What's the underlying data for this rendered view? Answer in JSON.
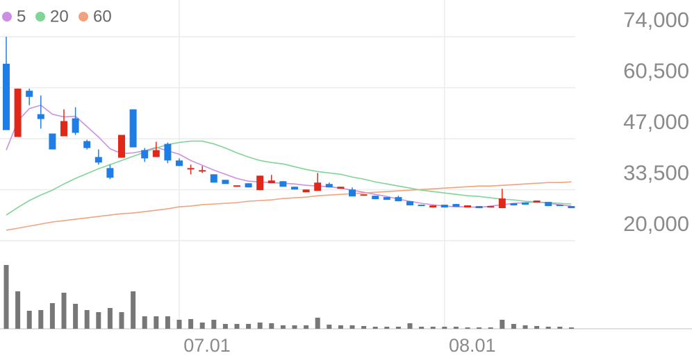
{
  "chart_data": {
    "type": "candlestick",
    "categories": [
      null,
      null,
      null,
      null,
      null,
      null,
      null,
      null,
      null,
      null,
      null,
      null,
      null,
      null,
      null,
      "07.01",
      null,
      null,
      null,
      null,
      null,
      null,
      null,
      null,
      null,
      null,
      null,
      null,
      null,
      null,
      null,
      null,
      null,
      null,
      null,
      null,
      null,
      null,
      "08.01",
      null,
      null,
      null,
      null,
      null,
      null,
      null,
      null,
      null,
      null,
      null
    ],
    "open": [
      66860,
      47466,
      59727,
      53505,
      48381,
      47649,
      52407,
      46368,
      42159,
      39231,
      41976,
      54786,
      43989,
      42159,
      45636,
      41244,
      38865,
      38316,
      37584,
      36120,
      34290,
      35205,
      33375,
      35205,
      35754,
      34290,
      32826,
      33192,
      35022,
      33741,
      33558,
      31911,
      31911,
      31545,
      31545,
      30447,
      29532,
      28800,
      29532,
      29715,
      28800,
      29166,
      28800,
      28617,
      29898,
      30081,
      30081,
      30264,
      29532,
      29166
    ],
    "high": [
      74000,
      60276,
      60276,
      58446,
      48381,
      54786,
      55335,
      46734,
      44172,
      40146,
      48015,
      54786,
      44538,
      46185,
      46002,
      41793,
      40146,
      39780,
      37584,
      36120,
      34656,
      35205,
      37218,
      37401,
      35754,
      34290,
      33558,
      37950,
      35388,
      34290,
      34107,
      32277,
      31911,
      31545,
      31911,
      30447,
      29532,
      29349,
      29532,
      29715,
      29349,
      29166,
      29166,
      33741,
      29898,
      30081,
      30630,
      30264,
      29532,
      29166
    ],
    "low": [
      49290,
      47466,
      55884,
      49662,
      44172,
      47649,
      48015,
      44172,
      40146,
      36303,
      41976,
      44721,
      40878,
      42159,
      40512,
      39780,
      37584,
      37950,
      35388,
      35022,
      34290,
      34107,
      33375,
      35205,
      34290,
      33558,
      32826,
      33192,
      34107,
      33741,
      31728,
      31911,
      30996,
      30813,
      30447,
      29349,
      29166,
      28800,
      28800,
      28983,
      28800,
      28617,
      28800,
      28617,
      29349,
      29532,
      30081,
      29166,
      29166,
      28617
    ],
    "close": [
      49290,
      60276,
      58080,
      52224,
      44172,
      51675,
      48564,
      44538,
      40695,
      36669,
      48015,
      44721,
      41793,
      43989,
      41244,
      39780,
      39231,
      38682,
      35388,
      35022,
      34656,
      34107,
      37218,
      35934,
      34290,
      33558,
      33558,
      35388,
      34107,
      34290,
      31728,
      32277,
      30996,
      30813,
      30447,
      29349,
      29166,
      29349,
      28800,
      28983,
      29349,
      28617,
      29166,
      31179,
      29349,
      29532,
      30630,
      29166,
      29166,
      28617
    ],
    "volume": [
      92,
      54,
      26,
      27,
      37,
      52,
      36,
      27,
      24,
      30,
      24,
      54,
      18,
      18,
      18,
      13,
      14,
      9,
      13,
      7,
      7,
      7,
      9,
      8,
      5,
      5,
      5,
      16,
      6,
      5,
      5,
      4,
      3,
      3,
      3,
      8,
      3,
      3,
      3,
      3,
      2,
      2,
      2,
      13,
      7,
      5,
      4,
      3,
      3,
      2
    ],
    "up_color": "#e0281a",
    "down_color": "#1f7ee6",
    "volume_color": "#777777",
    "series": [
      {
        "name": "5",
        "color": "#cc8fe3",
        "values": [
          43989,
          51675,
          54969,
          55884,
          53505,
          52773,
          52956,
          50211,
          47466,
          44355,
          43074,
          43257,
          43806,
          44721,
          43806,
          42891,
          41244,
          39963,
          38682,
          37584,
          36486,
          35754,
          35571,
          35388,
          35205,
          35022,
          34656,
          34473,
          34290,
          33924,
          33375,
          32826,
          32277,
          31728,
          30996,
          30447,
          29898,
          29532,
          29166,
          28983,
          28983,
          28800,
          29166,
          29532,
          29898,
          30081,
          30264,
          29898,
          29532,
          29166
        ]
      },
      {
        "name": "20",
        "color": "#80d496",
        "values": [
          26787,
          28800,
          30630,
          32094,
          33375,
          35022,
          36486,
          37767,
          39048,
          40146,
          41244,
          42342,
          43440,
          44538,
          45453,
          46002,
          46368,
          46368,
          45636,
          44538,
          43257,
          42159,
          41244,
          40695,
          40329,
          39597,
          38865,
          38316,
          37950,
          37584,
          36852,
          36303,
          35571,
          35022,
          34473,
          33924,
          33375,
          33009,
          32643,
          32277,
          31911,
          31728,
          31362,
          30996,
          30813,
          30447,
          30264,
          30081,
          29898,
          29715
        ]
      },
      {
        "name": "60",
        "color": "#f2a27c",
        "values": [
          22761,
          23310,
          23859,
          24408,
          24957,
          25323,
          25689,
          26055,
          26421,
          26787,
          27153,
          27336,
          27702,
          28068,
          28434,
          28983,
          29166,
          29532,
          29715,
          29898,
          30081,
          30447,
          30630,
          30813,
          31179,
          31362,
          31545,
          31911,
          32094,
          32277,
          32460,
          32643,
          32826,
          33009,
          33192,
          33375,
          33558,
          33741,
          33924,
          34107,
          34290,
          34473,
          34473,
          34656,
          34839,
          35022,
          35205,
          35388,
          35388,
          35571
        ]
      }
    ],
    "ylim": [
      20000,
      83740
    ],
    "yticks": [
      {
        "value": 20000,
        "label": "20,000"
      },
      {
        "value": 33500,
        "label": "33,500"
      },
      {
        "value": 47000,
        "label": "47,000"
      },
      {
        "value": 60500,
        "label": "60,500"
      },
      {
        "value": 74000,
        "label": "74,000"
      }
    ],
    "volume_ylim": [
      0,
      124
    ],
    "grid": true
  }
}
